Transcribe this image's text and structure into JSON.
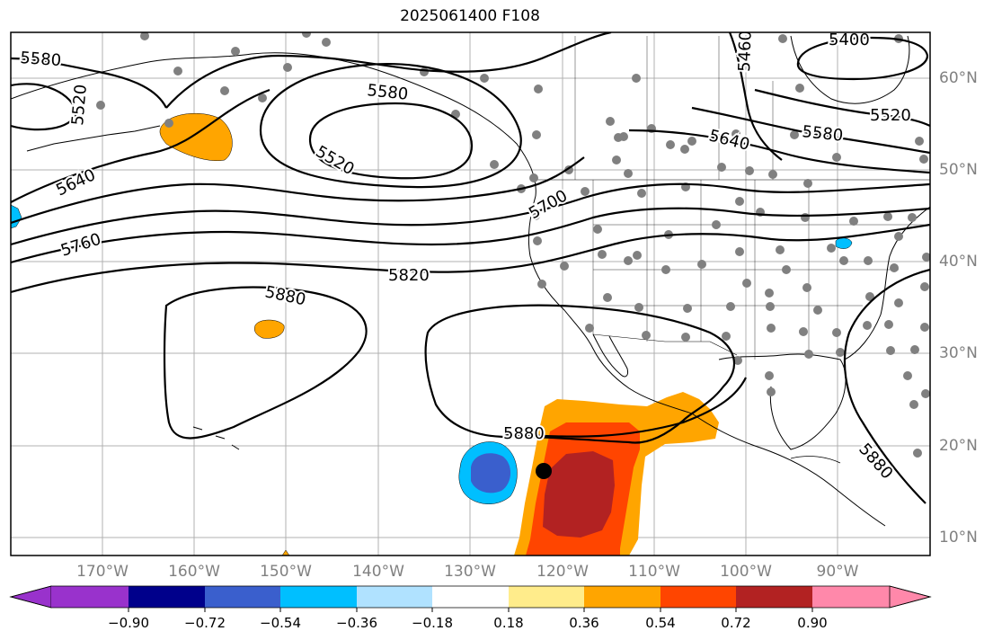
{
  "title": "2025061400 F108",
  "lat_labels": [
    "60°N",
    "50°N",
    "40°N",
    "30°N",
    "20°N",
    "10°N"
  ],
  "lon_labels": [
    "170°W",
    "160°W",
    "150°W",
    "140°W",
    "130°W",
    "120°W",
    "110°W",
    "100°W",
    "90°W"
  ],
  "contour_labels": [
    "5580",
    "5520",
    "5640",
    "5760",
    "5580",
    "5520",
    "5700",
    "5820",
    "5880",
    "5880",
    "5460",
    "5400",
    "5520",
    "5580",
    "5640",
    "5880"
  ],
  "colorbar": {
    "tick_labels": [
      "−0.90",
      "−0.72",
      "−0.54",
      "−0.36",
      "−0.18",
      "0.18",
      "0.36",
      "0.54",
      "0.72",
      "0.90"
    ],
    "colors": [
      "#9932cc",
      "#00008b",
      "#3a5fcd",
      "#00bfff",
      "#b0e2ff",
      "#ffffff",
      "#ffec8b",
      "#ffa500",
      "#ff4500",
      "#b22222",
      "#ff88aa"
    ]
  }
}
